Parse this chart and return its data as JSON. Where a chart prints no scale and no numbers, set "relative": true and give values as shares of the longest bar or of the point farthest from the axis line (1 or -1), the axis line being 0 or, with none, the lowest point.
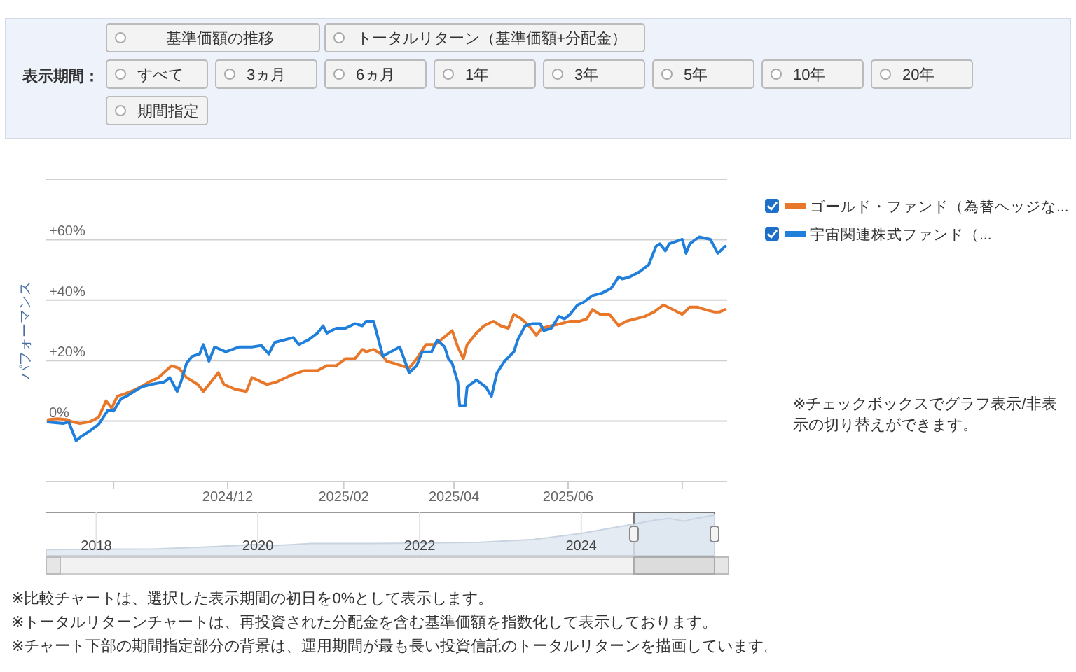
{
  "chart_data": [
    {
      "type": "other",
      "annotations": [
        "基準価額の推移",
        "トータルリターン（基準価額+分配金）",
        "表示期間：",
        "すべて",
        "3ヵ月",
        "6ヵ月",
        "1年",
        "3年",
        "5年",
        "10年",
        "20年",
        "期間指定"
      ]
    },
    {
      "type": "line",
      "ylabel": "パフォーマンス",
      "legend": "right",
      "grid": "y",
      "xlim": [
        "2024-08-26",
        "2025-08-25"
      ],
      "xticks": [
        {
          "value": "2024-10-01",
          "label": null
        },
        {
          "value": "2024-12-01",
          "label": "2024/12"
        },
        {
          "value": "2025-02-01",
          "label": "2025/02"
        },
        {
          "value": "2025-04-01",
          "label": "2025/04"
        },
        {
          "value": "2025-06-01",
          "label": "2025/06"
        },
        {
          "value": "2025-08-01",
          "label": null
        }
      ],
      "ylim": [
        -20,
        80
      ],
      "yticks": [
        {
          "value": -20,
          "label": null
        },
        {
          "value": 0,
          "label": "0%"
        },
        {
          "value": 20,
          "label": "+20%"
        },
        {
          "value": 40,
          "label": "+40%"
        },
        {
          "value": 60,
          "label": "+60%"
        },
        {
          "value": 80,
          "label": null
        }
      ],
      "annotations": [
        "※チェックボックスでグラフ表示/非表示の切り替えができます。"
      ],
      "series": [
        {
          "name": "ゴールド・ファンド（為替ヘッジな...",
          "color": "#e8772a",
          "x": [
            "2024-08-27",
            "2024-09-01",
            "2024-09-06",
            "2024-09-09",
            "2024-09-13",
            "2024-09-18",
            "2024-09-23",
            "2024-09-27",
            "2024-09-30",
            "2024-10-03",
            "2024-10-07",
            "2024-10-13",
            "2024-10-20",
            "2024-10-25",
            "2024-11-01",
            "2024-11-05",
            "2024-11-09",
            "2024-11-15",
            "2024-11-18",
            "2024-11-23",
            "2024-11-26",
            "2024-11-29",
            "2024-12-05",
            "2024-12-11",
            "2024-12-14",
            "2024-12-22",
            "2024-12-27",
            "2025-01-04",
            "2025-01-11",
            "2025-01-18",
            "2025-01-23",
            "2025-01-28",
            "2025-02-02",
            "2025-02-07",
            "2025-02-11",
            "2025-02-13",
            "2025-02-17",
            "2025-02-21",
            "2025-02-24",
            "2025-02-28",
            "2025-03-08",
            "2025-03-12",
            "2025-03-17",
            "2025-03-22",
            "2025-03-28",
            "2025-03-31",
            "2025-04-03",
            "2025-04-06",
            "2025-04-08",
            "2025-04-13",
            "2025-04-17",
            "2025-04-22",
            "2025-04-26",
            "2025-04-30",
            "2025-05-03",
            "2025-05-07",
            "2025-05-11",
            "2025-05-15",
            "2025-05-18",
            "2025-05-23",
            "2025-05-28",
            "2025-06-02",
            "2025-06-07",
            "2025-06-11",
            "2025-06-14",
            "2025-06-18",
            "2025-06-23",
            "2025-06-28",
            "2025-07-02",
            "2025-07-07",
            "2025-07-12",
            "2025-07-17",
            "2025-07-22",
            "2025-07-27",
            "2025-08-01",
            "2025-08-05",
            "2025-08-09",
            "2025-08-13",
            "2025-08-18",
            "2025-08-21",
            "2025-08-24"
          ],
          "values": [
            0.5,
            0.8,
            0.5,
            -0.3,
            -0.8,
            -0.3,
            1.2,
            6.7,
            4.3,
            8.2,
            9.0,
            10.5,
            12.9,
            14.4,
            18.3,
            17.5,
            14.4,
            12.1,
            9.8,
            13.6,
            16.0,
            12.1,
            10.5,
            9.8,
            14.4,
            12.1,
            12.9,
            15.2,
            16.7,
            16.7,
            18.3,
            18.3,
            20.6,
            20.6,
            23.7,
            22.9,
            23.7,
            22.2,
            19.8,
            19.1,
            17.5,
            20.6,
            25.3,
            25.3,
            28.4,
            29.9,
            24.5,
            20.6,
            25.3,
            29.1,
            31.5,
            33.0,
            31.5,
            30.7,
            35.3,
            33.8,
            31.5,
            28.4,
            30.7,
            31.5,
            32.2,
            33.0,
            33.0,
            33.8,
            36.9,
            35.3,
            35.3,
            31.5,
            33.0,
            33.8,
            34.6,
            36.1,
            38.4,
            36.9,
            35.3,
            37.7,
            37.7,
            36.9,
            36.1,
            36.1,
            36.9
          ]
        },
        {
          "name": "宇宙関連株式ファンド（...",
          "color": "#1f7fdb",
          "x": [
            "2024-08-27",
            "2024-09-04",
            "2024-09-07",
            "2024-09-11",
            "2024-09-13",
            "2024-09-18",
            "2024-09-23",
            "2024-09-28",
            "2024-10-01",
            "2024-10-05",
            "2024-10-08",
            "2024-10-12",
            "2024-10-16",
            "2024-10-21",
            "2024-10-28",
            "2024-10-31",
            "2024-11-04",
            "2024-11-06",
            "2024-11-09",
            "2024-11-12",
            "2024-11-16",
            "2024-11-18",
            "2024-11-21",
            "2024-11-24",
            "2024-11-30",
            "2024-12-07",
            "2024-12-14",
            "2024-12-19",
            "2024-12-23",
            "2024-12-26",
            "2024-12-31",
            "2025-01-05",
            "2025-01-08",
            "2025-01-13",
            "2025-01-18",
            "2025-01-21",
            "2025-01-23",
            "2025-01-28",
            "2025-02-02",
            "2025-02-07",
            "2025-02-11",
            "2025-02-13",
            "2025-02-17",
            "2025-02-19",
            "2025-02-22",
            "2025-02-24",
            "2025-03-03",
            "2025-03-08",
            "2025-03-12",
            "2025-03-15",
            "2025-03-20",
            "2025-03-23",
            "2025-03-27",
            "2025-03-29",
            "2025-03-31",
            "2025-04-03",
            "2025-04-04",
            "2025-04-07",
            "2025-04-08",
            "2025-04-13",
            "2025-04-18",
            "2025-04-21",
            "2025-04-24",
            "2025-04-28",
            "2025-05-03",
            "2025-05-05",
            "2025-05-09",
            "2025-05-13",
            "2025-05-17",
            "2025-05-19",
            "2025-05-23",
            "2025-05-27",
            "2025-05-30",
            "2025-06-02",
            "2025-06-06",
            "2025-06-09",
            "2025-06-14",
            "2025-06-19",
            "2025-06-24",
            "2025-06-28",
            "2025-06-30",
            "2025-07-04",
            "2025-07-09",
            "2025-07-14",
            "2025-07-18",
            "2025-07-20",
            "2025-07-23",
            "2025-07-25",
            "2025-08-01",
            "2025-08-03",
            "2025-08-05",
            "2025-08-10",
            "2025-08-16",
            "2025-08-20",
            "2025-08-24"
          ],
          "values": [
            -0.3,
            -0.8,
            -0.3,
            -6.5,
            -5.4,
            -3.4,
            -1.1,
            3.6,
            3.3,
            7.4,
            8.2,
            9.8,
            11.3,
            12.1,
            12.9,
            14.4,
            9.8,
            12.9,
            19.1,
            21.4,
            22.2,
            25.3,
            19.8,
            24.5,
            22.9,
            24.5,
            24.5,
            25.0,
            22.2,
            26.0,
            26.8,
            27.6,
            25.3,
            26.8,
            29.1,
            31.5,
            29.1,
            30.7,
            30.7,
            32.2,
            31.5,
            33.0,
            33.0,
            28.4,
            21.4,
            22.2,
            24.5,
            16.0,
            18.3,
            22.9,
            22.9,
            26.8,
            24.5,
            20.6,
            19.1,
            12.9,
            5.1,
            5.1,
            11.3,
            13.6,
            11.3,
            8.2,
            16.0,
            19.8,
            22.9,
            26.8,
            31.5,
            32.2,
            32.2,
            29.9,
            30.7,
            34.6,
            33.8,
            35.3,
            38.4,
            39.2,
            41.5,
            42.3,
            43.9,
            47.7,
            47.0,
            47.7,
            49.3,
            51.6,
            57.8,
            58.6,
            56.3,
            58.6,
            60.1,
            55.5,
            58.6,
            60.9,
            60.1,
            55.5,
            57.8
          ]
        }
      ]
    },
    {
      "type": "area",
      "relative": true,
      "grid": "x",
      "xlim": [
        "2017-05-20",
        "2025-08-25"
      ],
      "xticks": [
        {
          "value": "2018-01-01",
          "label": "2018"
        },
        {
          "value": "2020-01-01",
          "label": "2020"
        },
        {
          "value": "2022-01-01",
          "label": "2022"
        },
        {
          "value": "2024-01-01",
          "label": "2024"
        }
      ],
      "bands": [
        {
          "axis": "x",
          "from": "2024-08-26",
          "to": "2025-08-25",
          "color": "#a9bfdc"
        }
      ],
      "annotations": [
        "※比較チャートは、選択した表示期間の初日を0%として表示します。",
        "※トータルリターンチャートは、再投資された分配金を含む基準価額を指数化して表示しております。",
        "※チャート下部の期間指定部分の背景は、運用期間が最も長い投資信託のトータルリターンを描画しています。"
      ],
      "series": [
        {
          "color": "#dfe6ef",
          "x": [
            "2017-05-20",
            "2018-01-01",
            "2018-10-01",
            "2019-06-01",
            "2020-01-01",
            "2020-03-15",
            "2020-09-01",
            "2021-06-01",
            "2022-01-01",
            "2022-10-01",
            "2023-06-01",
            "2024-01-01",
            "2024-06-01",
            "2024-08-26",
            "2024-12-01",
            "2025-02-01",
            "2025-04-08",
            "2025-06-01",
            "2025-08-25"
          ],
          "values": [
            0.15,
            0.16,
            0.17,
            0.22,
            0.28,
            0.25,
            0.3,
            0.3,
            0.31,
            0.33,
            0.4,
            0.55,
            0.7,
            0.78,
            0.88,
            0.92,
            0.85,
            0.92,
            1.0
          ]
        }
      ]
    }
  ]
}
